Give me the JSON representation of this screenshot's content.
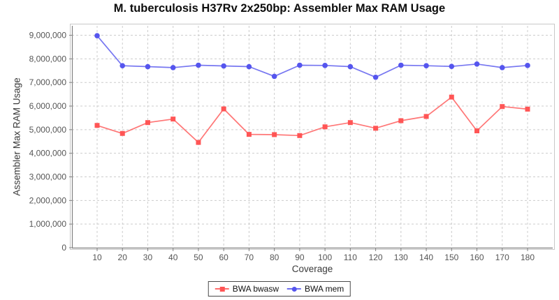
{
  "page": {
    "background": "#ffffff"
  },
  "chart_data": {
    "type": "line",
    "title": "M. tuberculosis H37Rv 2x250bp: Assembler Max RAM Usage",
    "xlabel": "Coverage",
    "ylabel": "Assembler Max RAM Usage",
    "x": [
      10,
      20,
      30,
      40,
      50,
      60,
      70,
      80,
      90,
      100,
      110,
      120,
      130,
      140,
      150,
      160,
      170,
      180
    ],
    "series": [
      {
        "name": "BWA bwasw",
        "marker": "square",
        "color": "#ff5555",
        "values": [
          5180000,
          4840000,
          5300000,
          5450000,
          4460000,
          5880000,
          4800000,
          4790000,
          4750000,
          5120000,
          5300000,
          5060000,
          5380000,
          5560000,
          6380000,
          4950000,
          5980000,
          5870000
        ]
      },
      {
        "name": "BWA mem",
        "marker": "circle",
        "color": "#5555ee",
        "values": [
          8980000,
          7710000,
          7670000,
          7630000,
          7730000,
          7700000,
          7670000,
          7260000,
          7730000,
          7720000,
          7670000,
          7220000,
          7730000,
          7710000,
          7680000,
          7780000,
          7630000,
          7720000
        ]
      }
    ],
    "ylim": [
      0,
      9400000
    ],
    "y_ticks": [
      0,
      1000000,
      2000000,
      3000000,
      4000000,
      5000000,
      6000000,
      7000000,
      8000000,
      9000000
    ],
    "grid": true,
    "grid_style": "dashed",
    "legend_position": "bottom-center",
    "colors": {
      "grid": "#cccccc",
      "plot_border": "#c8c8c8",
      "axis_line": "#808080",
      "tick_label": "#555555",
      "title": "#0d0d0d"
    }
  }
}
